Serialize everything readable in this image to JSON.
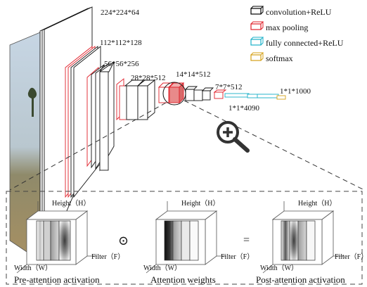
{
  "legend": [
    {
      "label": "convolution+ReLU",
      "color": "#000000"
    },
    {
      "label": "max pooling",
      "color": "#e0202a"
    },
    {
      "label": "fully connected+ReLU",
      "color": "#1ab0c8"
    },
    {
      "label": "softmax",
      "color": "#d4a017"
    }
  ],
  "layer_labels": {
    "l224": "224*224*64",
    "l112": "112*112*128",
    "l56": "56*56*256",
    "l28": "28*28*512",
    "l14": "14*14*512",
    "l7": "7*7*512",
    "l4090": "1*1*4090",
    "l1000": "1*1*1000"
  },
  "zoom_icon": "magnifier-plus-icon",
  "panels": {
    "axis_height": "Height（H）",
    "axis_width": "Width（W）",
    "axis_filter": "Filter（F）",
    "pre_caption": "Pre-attention activation",
    "attn_caption": "Attention weights",
    "post_caption": "Post-attention activation",
    "odot_symbol": "⊙",
    "equals_symbol": "="
  }
}
